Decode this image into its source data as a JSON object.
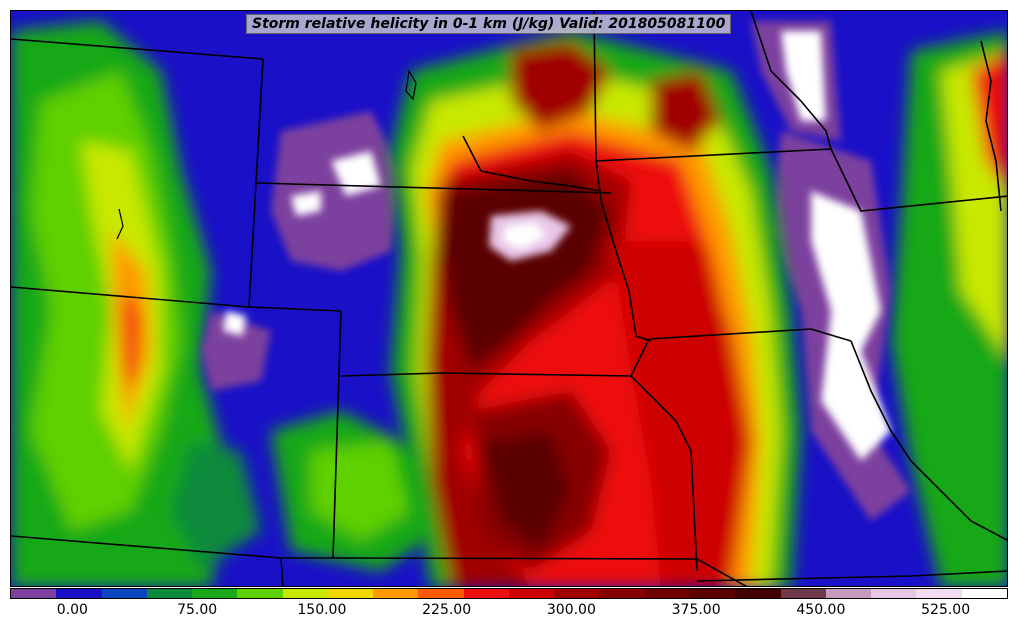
{
  "title": "Storm relative helicity in 0-1 km (J/kg) Valid: 201805081100",
  "colorbar": {
    "colors": [
      "#7b3f9e",
      "#1a10c8",
      "#0b46c0",
      "#0a8a3a",
      "#18a818",
      "#5fd000",
      "#c8e800",
      "#f0d800",
      "#ff9a00",
      "#ff5a00",
      "#ee1010",
      "#cc0000",
      "#a00000",
      "#880000",
      "#700000",
      "#5a0000",
      "#420000",
      "#6e3a4a",
      "#c79bc0",
      "#e8c6e8",
      "#f2dcf2",
      "#ffffff"
    ],
    "ticks": [
      {
        "label": "0.00",
        "value": 0
      },
      {
        "label": "75.00",
        "value": 75
      },
      {
        "label": "150.00",
        "value": 150
      },
      {
        "label": "225.00",
        "value": 225
      },
      {
        "label": "300.00",
        "value": 300
      },
      {
        "label": "375.00",
        "value": 375
      },
      {
        "label": "450.00",
        "value": 450
      },
      {
        "label": "525.00",
        "value": 525
      }
    ],
    "min": -37.5,
    "max": 562.5
  },
  "map": {
    "variable": "Storm relative helicity 0-1 km",
    "units": "J/kg",
    "valid_time": "201805081100",
    "region": "Central United States"
  }
}
